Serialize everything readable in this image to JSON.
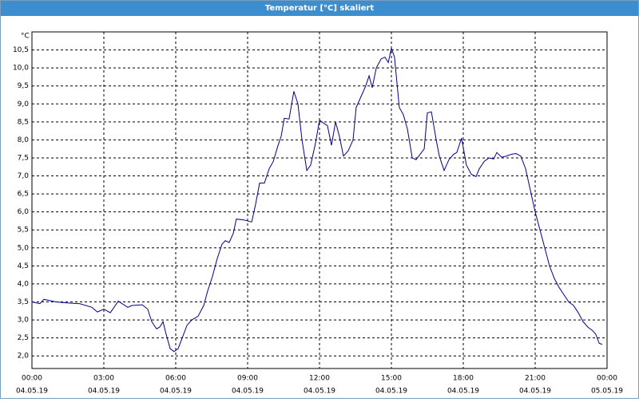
{
  "chart_data": {
    "type": "line",
    "title": "Temperatur [°C] skaliert",
    "y_label": "°C",
    "grid": true,
    "xlim": [
      0,
      24
    ],
    "ylim": [
      1.65,
      11.0
    ],
    "xticks": [
      {
        "value": 0,
        "label": "00:00",
        "date": "04.05.19"
      },
      {
        "value": 3,
        "label": "03:00",
        "date": "04.05.19"
      },
      {
        "value": 6,
        "label": "06:00",
        "date": "04.05.19"
      },
      {
        "value": 9,
        "label": "09:00",
        "date": "04.05.19"
      },
      {
        "value": 12,
        "label": "12:00",
        "date": "04.05.19"
      },
      {
        "value": 15,
        "label": "15:00",
        "date": "04.05.19"
      },
      {
        "value": 18,
        "label": "18:00",
        "date": "04.05.19"
      },
      {
        "value": 21,
        "label": "21:00",
        "date": "04.05.19"
      },
      {
        "value": 24,
        "label": "00:00",
        "date": "05.05.19"
      }
    ],
    "yticks": [
      {
        "value": 2.0,
        "label": "2,0"
      },
      {
        "value": 2.5,
        "label": "2,5"
      },
      {
        "value": 3.0,
        "label": "3,0"
      },
      {
        "value": 3.5,
        "label": "3,5"
      },
      {
        "value": 4.0,
        "label": "4,0"
      },
      {
        "value": 4.5,
        "label": "4,5"
      },
      {
        "value": 5.0,
        "label": "5,0"
      },
      {
        "value": 5.5,
        "label": "5,5"
      },
      {
        "value": 6.0,
        "label": "6,0"
      },
      {
        "value": 6.5,
        "label": "6,5"
      },
      {
        "value": 7.0,
        "label": "7,0"
      },
      {
        "value": 7.5,
        "label": "7,5"
      },
      {
        "value": 8.0,
        "label": "8,0"
      },
      {
        "value": 8.5,
        "label": "8,5"
      },
      {
        "value": 9.0,
        "label": "9,0"
      },
      {
        "value": 9.5,
        "label": "9,5"
      },
      {
        "value": 10.0,
        "label": "10,0"
      },
      {
        "value": 10.5,
        "label": "10,5"
      }
    ],
    "x": [
      0,
      0.33,
      0.5,
      1.0,
      1.5,
      2.0,
      2.5,
      2.73,
      3.0,
      3.27,
      3.6,
      4.0,
      4.17,
      4.6,
      4.83,
      5.0,
      5.2,
      5.33,
      5.47,
      5.6,
      5.77,
      5.93,
      6.1,
      6.27,
      6.47,
      6.67,
      6.93,
      7.17,
      7.33,
      7.53,
      7.73,
      7.93,
      8.07,
      8.23,
      8.4,
      8.53,
      8.83,
      9.17,
      9.33,
      9.5,
      9.7,
      9.9,
      10.07,
      10.27,
      10.4,
      10.53,
      10.73,
      10.93,
      11.1,
      11.27,
      11.47,
      11.63,
      11.83,
      12.0,
      12.2,
      12.33,
      12.5,
      12.67,
      12.83,
      13.0,
      13.2,
      13.4,
      13.53,
      13.73,
      13.93,
      14.07,
      14.2,
      14.37,
      14.57,
      14.73,
      14.87,
      15.0,
      15.13,
      15.33,
      15.5,
      15.67,
      15.87,
      16.03,
      16.2,
      16.37,
      16.5,
      16.67,
      16.87,
      17.0,
      17.2,
      17.4,
      17.6,
      17.73,
      17.93,
      18.13,
      18.33,
      18.53,
      18.67,
      18.87,
      19.07,
      19.27,
      19.4,
      19.6,
      19.8,
      20.0,
      20.2,
      20.4,
      20.6,
      20.8,
      21.0,
      21.2,
      21.4,
      21.6,
      21.8,
      22.0,
      22.2,
      22.4,
      22.6,
      22.8,
      23.0,
      23.2,
      23.4,
      23.53,
      23.67,
      23.8
    ],
    "series": [
      {
        "name": "Temperatur",
        "color": "#00008b",
        "values": [
          3.5,
          3.45,
          3.57,
          3.5,
          3.47,
          3.45,
          3.35,
          3.22,
          3.3,
          3.2,
          3.52,
          3.35,
          3.4,
          3.42,
          3.3,
          2.95,
          2.75,
          2.8,
          2.95,
          2.6,
          2.2,
          2.12,
          2.2,
          2.5,
          2.85,
          3.0,
          3.1,
          3.4,
          3.8,
          4.2,
          4.7,
          5.1,
          5.2,
          5.15,
          5.4,
          5.8,
          5.78,
          5.72,
          6.2,
          6.8,
          6.8,
          7.2,
          7.4,
          7.85,
          8.1,
          8.6,
          8.58,
          9.35,
          9.0,
          8.0,
          7.15,
          7.3,
          7.9,
          8.55,
          8.45,
          8.4,
          7.85,
          8.5,
          8.1,
          7.55,
          7.7,
          8.0,
          8.9,
          9.2,
          9.5,
          9.78,
          9.45,
          10.0,
          10.25,
          10.3,
          10.15,
          10.55,
          10.3,
          8.9,
          8.7,
          8.3,
          7.5,
          7.45,
          7.6,
          7.75,
          8.75,
          8.78,
          8.0,
          7.55,
          7.15,
          7.45,
          7.6,
          7.65,
          8.05,
          7.3,
          7.05,
          6.98,
          7.2,
          7.4,
          7.5,
          7.47,
          7.65,
          7.52,
          7.55,
          7.6,
          7.62,
          7.55,
          7.2,
          6.6,
          6.0,
          5.5,
          5.0,
          4.5,
          4.15,
          3.9,
          3.7,
          3.5,
          3.4,
          3.2,
          2.95,
          2.8,
          2.7,
          2.6,
          2.35,
          2.32
        ]
      }
    ]
  }
}
